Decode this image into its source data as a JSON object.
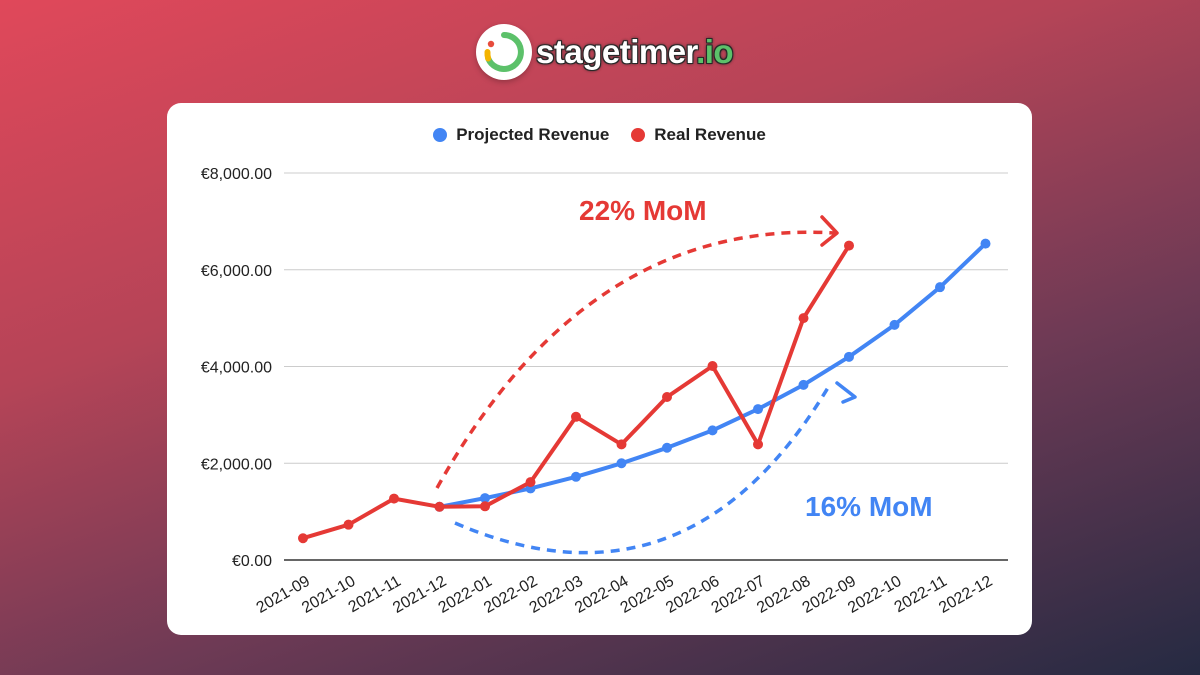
{
  "brand": {
    "name": "stagetimer",
    "tld": ".io",
    "colors": {
      "green": "#5cc16a",
      "red": "#e74c3c",
      "yellow": "#f4b400"
    }
  },
  "chart_data": {
    "type": "line",
    "categories": [
      "2021-09",
      "2021-10",
      "2021-11",
      "2021-12",
      "2022-01",
      "2022-02",
      "2022-03",
      "2022-04",
      "2022-05",
      "2022-06",
      "2022-07",
      "2022-08",
      "2022-09",
      "2022-10",
      "2022-11",
      "2022-12"
    ],
    "series": [
      {
        "name": "Projected Revenue",
        "color": "#4285f4",
        "values": [
          null,
          null,
          null,
          1100,
          1280,
          1480,
          1720,
          2000,
          2320,
          2680,
          3120,
          3620,
          4200,
          4860,
          5640,
          6540
        ]
      },
      {
        "name": "Real Revenue",
        "color": "#e53935",
        "values": [
          450,
          730,
          1270,
          1100,
          1110,
          1610,
          2960,
          2390,
          3370,
          4010,
          2390,
          5000,
          6500,
          null,
          null,
          null
        ]
      }
    ],
    "ylim": [
      0,
      8000
    ],
    "yticks": [
      {
        "value": 0,
        "label": "€0.00"
      },
      {
        "value": 2000,
        "label": "€2,000.00"
      },
      {
        "value": 4000,
        "label": "€4,000.00"
      },
      {
        "value": 6000,
        "label": "€6,000.00"
      },
      {
        "value": 8000,
        "label": "€8,000.00"
      }
    ],
    "grid": true,
    "legend_position": "top",
    "annotations": [
      {
        "text": "22% MoM",
        "color": "#e53935"
      },
      {
        "text": "16% MoM",
        "color": "#4285f4"
      }
    ]
  }
}
